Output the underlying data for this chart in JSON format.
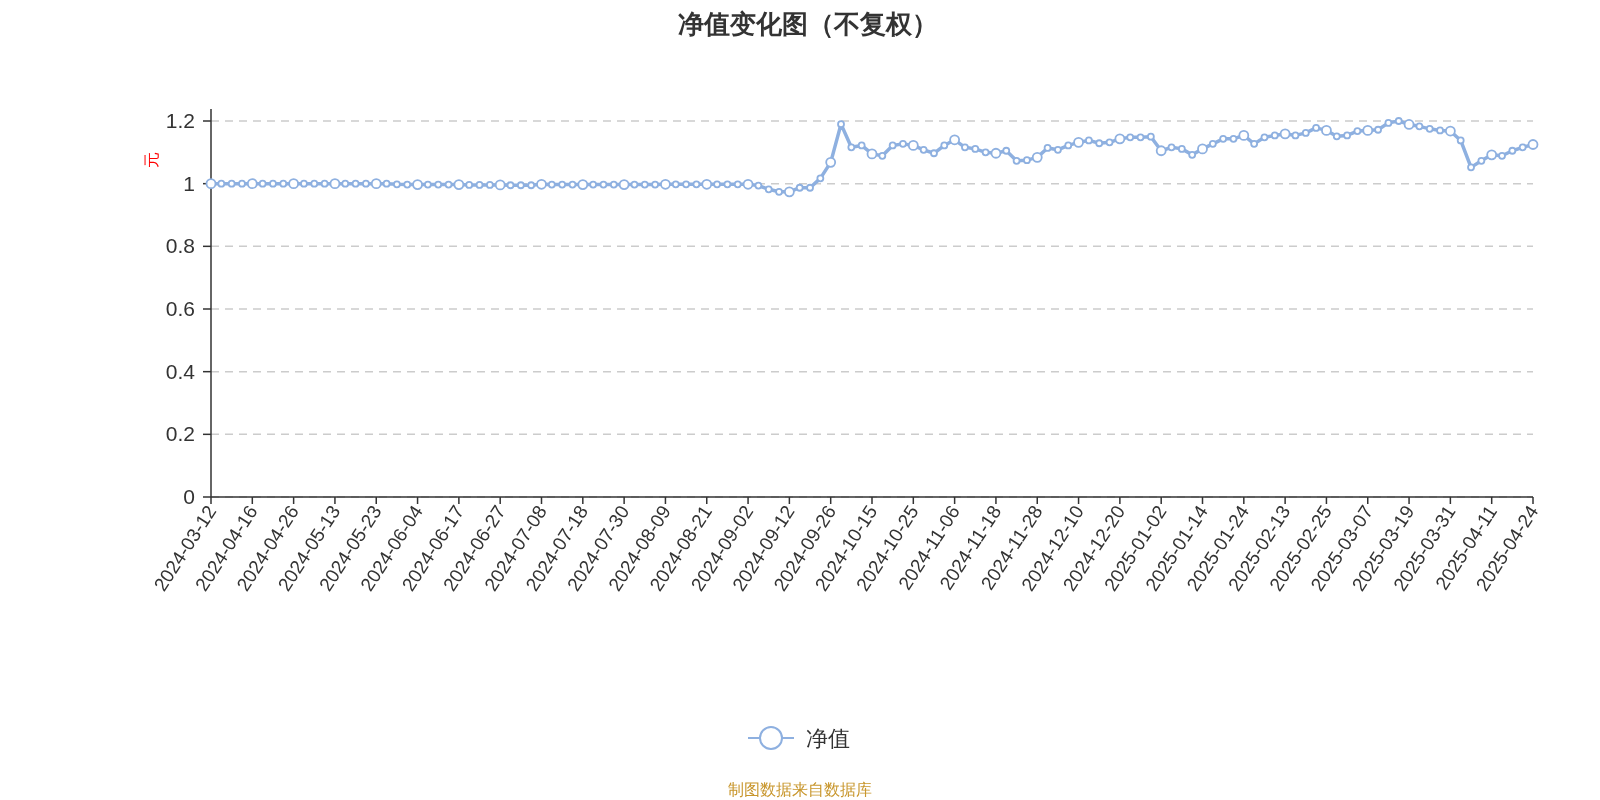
{
  "chart_data": {
    "type": "line",
    "title": "净值变化图（不复权）",
    "ylabel": "元",
    "categories": [
      "2024-03-12",
      null,
      null,
      null,
      "2024-04-16",
      null,
      null,
      null,
      "2024-04-26",
      null,
      null,
      null,
      "2024-05-13",
      null,
      null,
      null,
      "2024-05-23",
      null,
      null,
      null,
      "2024-06-04",
      null,
      null,
      null,
      "2024-06-17",
      null,
      null,
      null,
      "2024-06-27",
      null,
      null,
      null,
      "2024-07-08",
      null,
      null,
      null,
      "2024-07-18",
      null,
      null,
      null,
      "2024-07-30",
      null,
      null,
      null,
      "2024-08-09",
      null,
      null,
      null,
      "2024-08-21",
      null,
      null,
      null,
      "2024-09-02",
      null,
      null,
      null,
      "2024-09-12",
      null,
      null,
      null,
      "2024-09-26",
      null,
      null,
      null,
      "2024-10-15",
      null,
      null,
      null,
      "2024-10-25",
      null,
      null,
      null,
      "2024-11-06",
      null,
      null,
      null,
      "2024-11-18",
      null,
      null,
      null,
      "2024-11-28",
      null,
      null,
      null,
      "2024-12-10",
      null,
      null,
      null,
      "2024-12-20",
      null,
      null,
      null,
      "2025-01-02",
      null,
      null,
      null,
      "2025-01-14",
      null,
      null,
      null,
      "2025-01-24",
      null,
      null,
      null,
      "2025-02-13",
      null,
      null,
      null,
      "2025-02-25",
      null,
      null,
      null,
      "2025-03-07",
      null,
      null,
      null,
      "2025-03-19",
      null,
      null,
      null,
      "2025-03-31",
      null,
      null,
      null,
      "2025-04-11",
      null,
      null,
      null,
      "2025-04-24"
    ],
    "series": [
      {
        "name": "净值",
        "color": "#8eb0e0",
        "values": [
          1.0,
          1.0,
          1.0,
          1.0,
          1.0,
          1.0,
          1.0,
          1.0,
          1.0,
          1.0,
          1.0,
          1.0,
          1.0,
          1.0,
          1.0,
          1.0,
          1.0,
          1.0,
          0.998,
          0.997,
          0.997,
          0.997,
          0.997,
          0.997,
          0.997,
          0.996,
          0.996,
          0.996,
          0.996,
          0.995,
          0.995,
          0.995,
          0.998,
          0.997,
          0.997,
          0.997,
          0.997,
          0.997,
          0.997,
          0.997,
          0.997,
          0.997,
          0.997,
          0.997,
          0.998,
          0.998,
          0.998,
          0.998,
          0.998,
          0.998,
          0.998,
          0.998,
          0.998,
          0.994,
          0.982,
          0.974,
          0.974,
          0.987,
          0.987,
          1.017,
          1.068,
          1.19,
          1.116,
          1.122,
          1.095,
          1.089,
          1.122,
          1.127,
          1.122,
          1.108,
          1.097,
          1.122,
          1.14,
          1.116,
          1.111,
          1.1,
          1.097,
          1.105,
          1.073,
          1.075,
          1.084,
          1.114,
          1.108,
          1.122,
          1.132,
          1.138,
          1.129,
          1.132,
          1.143,
          1.148,
          1.148,
          1.15,
          1.105,
          1.116,
          1.111,
          1.092,
          1.111,
          1.127,
          1.143,
          1.143,
          1.154,
          1.127,
          1.148,
          1.154,
          1.159,
          1.154,
          1.162,
          1.178,
          1.17,
          1.151,
          1.154,
          1.168,
          1.17,
          1.172,
          1.194,
          1.2,
          1.189,
          1.183,
          1.175,
          1.17,
          1.168,
          1.138,
          1.052,
          1.073,
          1.092,
          1.089,
          1.105,
          1.116,
          1.125
        ]
      }
    ],
    "ylim": [
      0,
      1.2
    ],
    "yticks": [
      0,
      0.2,
      0.4,
      0.6,
      0.8,
      1,
      1.2
    ],
    "grid": "y",
    "legend": "bottom",
    "marker": "circle",
    "annotations": [
      "制图数据来自数据库"
    ]
  }
}
